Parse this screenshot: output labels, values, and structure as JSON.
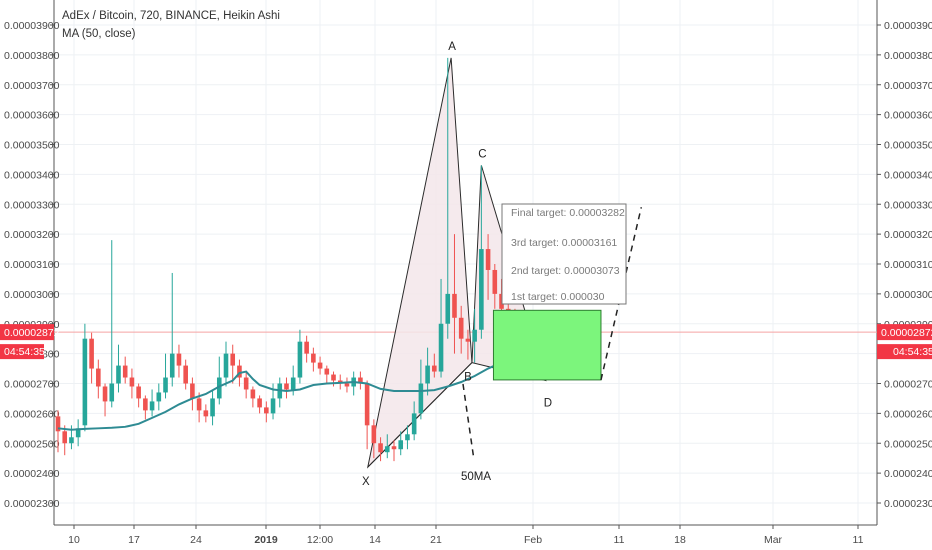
{
  "chart_data": {
    "type": "candlestick",
    "title": "AdEx / Bitcoin, 720, BINANCE, Heikin Ashi",
    "indicator": "MA (50, close)",
    "y_range": [
      2.23e-05,
      3.95e-05
    ],
    "y_ticks": [
      "0.00003900",
      "0.00003800",
      "0.00003700",
      "0.00003600",
      "0.00003500",
      "0.00003400",
      "0.00003300",
      "0.00003200",
      "0.00003100",
      "0.00003000",
      "0.00002900",
      "0.00002800",
      "0.00002700",
      "0.00002600",
      "0.00002500",
      "0.00002400",
      "0.00002300"
    ],
    "x_ticks": [
      "10",
      "17",
      "24",
      "2019",
      "12:00",
      "14",
      "21",
      "Feb",
      "11",
      "18",
      "Mar",
      "11"
    ],
    "grid": true,
    "current_price": "0.00002872",
    "countdown": "04:54:35",
    "colors": {
      "up": "#26a69a",
      "down": "#ef5350",
      "ma": "#2e8b93",
      "pattern_fill": "#f3e6ea",
      "pattern_line": "#2b2b2b",
      "target_box": "#7cf57c",
      "price_line": "#f5a3a3"
    },
    "pattern_points": [
      {
        "label": "X",
        "t": 46.1,
        "price": 2.42e-05
      },
      {
        "label": "A",
        "t": 58.5,
        "price": 3.79e-05
      },
      {
        "label": "B",
        "t": 61.6,
        "price": 2.77e-05
      },
      {
        "label": "C",
        "t": 63.0,
        "price": 3.43e-05
      },
      {
        "label": "D",
        "t": 72.6,
        "price": 2.71e-05
      }
    ],
    "ma_label": "50MA",
    "targets": [
      {
        "label": "Final target: 0.00003282"
      },
      {
        "label": "3rd target: 0.00003161"
      },
      {
        "label": "2nd target: 0.00003073"
      },
      {
        "label": "1st target: 0.000030"
      }
    ],
    "target_zone": {
      "t_start": 64.8,
      "t_end": 80.8,
      "price_top": 2.945e-05,
      "price_bottom": 2.712e-05
    },
    "projection_path": [
      {
        "t": 80.8,
        "price": 2.712e-05
      },
      {
        "t": 86.8,
        "price": 3.29e-05
      }
    ],
    "ma50_line": [
      {
        "t": 0,
        "price": 2.55e-05
      },
      {
        "t": 2,
        "price": 2.545e-05
      },
      {
        "t": 4,
        "price": 2.548e-05
      },
      {
        "t": 6,
        "price": 2.55e-05
      },
      {
        "t": 8,
        "price": 2.552e-05
      },
      {
        "t": 10,
        "price": 2.555e-05
      },
      {
        "t": 12,
        "price": 2.565e-05
      },
      {
        "t": 14,
        "price": 2.585e-05
      },
      {
        "t": 16,
        "price": 2.605e-05
      },
      {
        "t": 18,
        "price": 2.63e-05
      },
      {
        "t": 20,
        "price": 2.65e-05
      },
      {
        "t": 22,
        "price": 2.665e-05
      },
      {
        "t": 24,
        "price": 2.69e-05
      },
      {
        "t": 26,
        "price": 2.71e-05
      },
      {
        "t": 27,
        "price": 2.735e-05
      },
      {
        "t": 28,
        "price": 2.74e-05
      },
      {
        "t": 29,
        "price": 2.715e-05
      },
      {
        "t": 30,
        "price": 2.695e-05
      },
      {
        "t": 32,
        "price": 2.68e-05
      },
      {
        "t": 34,
        "price": 2.675e-05
      },
      {
        "t": 36,
        "price": 2.68e-05
      },
      {
        "t": 38,
        "price": 2.695e-05
      },
      {
        "t": 40,
        "price": 2.7e-05
      },
      {
        "t": 42,
        "price": 2.702e-05
      },
      {
        "t": 44,
        "price": 2.705e-05
      },
      {
        "t": 46,
        "price": 2.7e-05
      },
      {
        "t": 48,
        "price": 2.682e-05
      },
      {
        "t": 50,
        "price": 2.675e-05
      },
      {
        "t": 52,
        "price": 2.675e-05
      },
      {
        "t": 54,
        "price": 2.675e-05
      },
      {
        "t": 56,
        "price": 2.678e-05
      },
      {
        "t": 58,
        "price": 2.69e-05
      },
      {
        "t": 60,
        "price": 2.705e-05
      },
      {
        "t": 62,
        "price": 2.725e-05
      },
      {
        "t": 64,
        "price": 2.75e-05
      },
      {
        "t": 66,
        "price": 2.77e-05
      }
    ],
    "candles": [
      [
        2.59e-05,
        2.54e-05,
        2.61e-05,
        2.47e-05
      ],
      [
        2.54e-05,
        2.5e-05,
        2.56e-05,
        2.46e-05
      ],
      [
        2.5e-05,
        2.52e-05,
        2.56e-05,
        2.48e-05
      ],
      [
        2.52e-05,
        2.55e-05,
        2.58e-05,
        2.49e-05
      ],
      [
        2.56e-05,
        2.85e-05,
        2.9e-05,
        2.54e-05
      ],
      [
        2.85e-05,
        2.75e-05,
        2.87e-05,
        2.7e-05
      ],
      [
        2.75e-05,
        2.69e-05,
        2.78e-05,
        2.65e-05
      ],
      [
        2.69e-05,
        2.64e-05,
        2.7e-05,
        2.59e-05
      ],
      [
        2.64e-05,
        2.7e-05,
        3.18e-05,
        2.62e-05
      ],
      [
        2.7e-05,
        2.76e-05,
        2.83e-05,
        2.67e-05
      ],
      [
        2.76e-05,
        2.72e-05,
        2.79e-05,
        2.7e-05
      ],
      [
        2.72e-05,
        2.69e-05,
        2.75e-05,
        2.65e-05
      ],
      [
        2.69e-05,
        2.65e-05,
        2.7e-05,
        2.62e-05
      ],
      [
        2.65e-05,
        2.61e-05,
        2.66e-05,
        2.58e-05
      ],
      [
        2.61e-05,
        2.64e-05,
        2.68e-05,
        2.59e-05
      ],
      [
        2.64e-05,
        2.67e-05,
        2.7e-05,
        2.61e-05
      ],
      [
        2.67e-05,
        2.72e-05,
        2.8e-05,
        2.65e-05
      ],
      [
        2.72e-05,
        2.8e-05,
        3.07e-05,
        2.69e-05
      ],
      [
        2.8e-05,
        2.76e-05,
        2.83e-05,
        2.72e-05
      ],
      [
        2.76e-05,
        2.7e-05,
        2.78e-05,
        2.68e-05
      ],
      [
        2.7e-05,
        2.65e-05,
        2.72e-05,
        2.61e-05
      ],
      [
        2.65e-05,
        2.61e-05,
        2.67e-05,
        2.57e-05
      ],
      [
        2.61e-05,
        2.59e-05,
        2.63e-05,
        2.57e-05
      ],
      [
        2.59e-05,
        2.65e-05,
        2.68e-05,
        2.56e-05
      ],
      [
        2.65e-05,
        2.72e-05,
        2.79e-05,
        2.63e-05
      ],
      [
        2.72e-05,
        2.8e-05,
        2.84e-05,
        2.69e-05
      ],
      [
        2.8e-05,
        2.76e-05,
        2.83e-05,
        2.7e-05
      ],
      [
        2.76e-05,
        2.72e-05,
        2.78e-05,
        2.69e-05
      ],
      [
        2.72e-05,
        2.68e-05,
        2.74e-05,
        2.65e-05
      ],
      [
        2.68e-05,
        2.65e-05,
        2.69e-05,
        2.62e-05
      ],
      [
        2.65e-05,
        2.62e-05,
        2.66e-05,
        2.6e-05
      ],
      [
        2.62e-05,
        2.6e-05,
        2.64e-05,
        2.57e-05
      ],
      [
        2.6e-05,
        2.65e-05,
        2.7e-05,
        2.58e-05
      ],
      [
        2.65e-05,
        2.7e-05,
        2.72e-05,
        2.62e-05
      ],
      [
        2.7e-05,
        2.68e-05,
        2.72e-05,
        2.65e-05
      ],
      [
        2.68e-05,
        2.72e-05,
        2.76e-05,
        2.66e-05
      ],
      [
        2.72e-05,
        2.84e-05,
        2.88e-05,
        2.7e-05
      ],
      [
        2.84e-05,
        2.8e-05,
        2.86e-05,
        2.77e-05
      ],
      [
        2.8e-05,
        2.77e-05,
        2.82e-05,
        2.74e-05
      ],
      [
        2.77e-05,
        2.75e-05,
        2.79e-05,
        2.73e-05
      ],
      [
        2.75e-05,
        2.73e-05,
        2.76e-05,
        2.7e-05
      ],
      [
        2.73e-05,
        2.71e-05,
        2.74e-05,
        2.69e-05
      ],
      [
        2.71e-05,
        2.7e-05,
        2.73e-05,
        2.68e-05
      ],
      [
        2.7e-05,
        2.69e-05,
        2.72e-05,
        2.67e-05
      ],
      [
        2.69e-05,
        2.72e-05,
        2.74e-05,
        2.66e-05
      ],
      [
        2.72e-05,
        2.7e-05,
        2.74e-05,
        2.68e-05
      ],
      [
        2.7e-05,
        2.56e-05,
        2.71e-05,
        2.48e-05
      ],
      [
        2.56e-05,
        2.5e-05,
        2.58e-05,
        2.45e-05
      ],
      [
        2.5e-05,
        2.47e-05,
        2.52e-05,
        2.44e-05
      ],
      [
        2.47e-05,
        2.49e-05,
        2.53e-05,
        2.45e-05
      ],
      [
        2.49e-05,
        2.48e-05,
        2.51e-05,
        2.44e-05
      ],
      [
        2.48e-05,
        2.51e-05,
        2.54e-05,
        2.46e-05
      ],
      [
        2.51e-05,
        2.53e-05,
        2.56e-05,
        2.48e-05
      ],
      [
        2.53e-05,
        2.6e-05,
        2.64e-05,
        2.51e-05
      ],
      [
        2.6e-05,
        2.7e-05,
        2.78e-05,
        2.58e-05
      ],
      [
        2.7e-05,
        2.76e-05,
        2.82e-05,
        2.66e-05
      ],
      [
        2.76e-05,
        2.74e-05,
        2.8e-05,
        2.72e-05
      ],
      [
        2.74e-05,
        2.9e-05,
        3.05e-05,
        2.72e-05
      ],
      [
        2.9e-05,
        3e-05,
        3.79e-05,
        2.85e-05
      ],
      [
        3e-05,
        2.92e-05,
        3.2e-05,
        2.8e-05
      ],
      [
        2.92e-05,
        2.85e-05,
        2.96e-05,
        2.8e-05
      ],
      [
        2.85e-05,
        2.84e-05,
        2.88e-05,
        2.78e-05
      ],
      [
        2.84e-05,
        2.88e-05,
        2.95e-05,
        2.77e-05
      ],
      [
        2.88e-05,
        3.15e-05,
        3.43e-05,
        2.85e-05
      ],
      [
        3.15e-05,
        3.08e-05,
        3.2e-05,
        2.98e-05
      ],
      [
        3.08e-05,
        3e-05,
        3.1e-05,
        2.95e-05
      ],
      [
        3e-05,
        2.95e-05,
        3.05e-05,
        2.9e-05
      ],
      [
        2.95e-05,
        2.92e-05,
        3e-05,
        2.88e-05
      ],
      [
        2.92e-05,
        2.9e-05,
        2.95e-05,
        2.86e-05
      ],
      [
        2.9e-05,
        2.88e-05,
        2.92e-05,
        2.84e-05
      ]
    ]
  }
}
